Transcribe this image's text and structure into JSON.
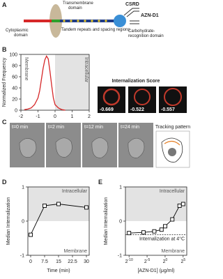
{
  "panel_labels": [
    "A",
    "B",
    "C",
    "D",
    "E"
  ],
  "diagram": {
    "transmembrane": [
      "Transmembrane",
      "domain"
    ],
    "csrd": "CSRD",
    "antibody": "AZN-D1",
    "cytoplasmic": [
      "Cytoplasmic",
      "domain"
    ],
    "tandem": "Tandem repeats and spacing regions",
    "crd": [
      "Carbohydrate-",
      "recognition domain"
    ]
  },
  "internalization": {
    "title": "Internalization Score",
    "scores": [
      -0.669,
      -0.522,
      -0.557
    ]
  },
  "time_lapse": {
    "frames": [
      "t=0 min",
      "t=2 min",
      "t=12 min",
      "t=24 min"
    ],
    "tracking_label": "Tracking pattern"
  },
  "chart_data": [
    {
      "type": "line",
      "y_label": "Normalized Frequency",
      "region_labels": [
        "Membrane",
        "Intracellular"
      ],
      "shade_axis": "x",
      "shaded_from": 0,
      "color": "#d62728",
      "x": [
        -1.8,
        -1.6,
        -1.4,
        -1.2,
        -1.0,
        -0.9,
        -0.8,
        -0.7,
        -0.6,
        -0.5,
        -0.4,
        -0.3,
        -0.2,
        -0.1,
        0,
        0.2,
        0.4,
        0.6
      ],
      "values": [
        1,
        2,
        4,
        10,
        22,
        35,
        55,
        75,
        90,
        97,
        92,
        70,
        45,
        22,
        10,
        4,
        1,
        0
      ],
      "xlim": [
        -2,
        2
      ],
      "xticks": [
        -2,
        -1,
        0,
        1,
        2
      ],
      "ylim": [
        0,
        100
      ],
      "yticks": [
        0,
        20,
        40,
        60,
        80,
        100
      ]
    },
    {
      "type": "line",
      "markers": "square",
      "x_label": "Time (min)",
      "y_label": "Median Internalization",
      "region_labels": [
        "Intracellular",
        "Membrane"
      ],
      "shade_axis": "y",
      "shaded_from": 0,
      "color": "#000000",
      "x": [
        0,
        7.5,
        15,
        30
      ],
      "values": [
        -0.4,
        0.45,
        0.5,
        0.4
      ],
      "xlim": [
        -1.5,
        31.5
      ],
      "xticks": [
        0,
        7.5,
        15,
        22.5,
        30
      ],
      "ylim": [
        -1,
        1
      ],
      "yticks": [
        -1,
        0,
        1
      ]
    },
    {
      "type": "line",
      "markers": "square",
      "log_base": 2,
      "x_label": "[AZN-D1] (μg/ml)",
      "y_label": "Median Internalization",
      "region_labels": [
        "Intracellular",
        "Membrane"
      ],
      "shade_axis": "y",
      "shaded_from": 0,
      "color": "#000000",
      "reference_line": {
        "value": -0.4,
        "label": "Internalization at 4°C"
      },
      "x": [
        0.0009765625,
        0.015625,
        0.125,
        0.5,
        1,
        4,
        16,
        32
      ],
      "values": [
        -0.35,
        -0.33,
        -0.3,
        -0.25,
        -0.15,
        0.05,
        0.45,
        0.5
      ],
      "xlim": [
        0.00048828125,
        64
      ],
      "xticks": [
        {
          "value": 0.0009765625,
          "label": "2",
          "exponent": "-10"
        },
        {
          "value": 0.03125,
          "label": "2",
          "exponent": "-5"
        },
        {
          "value": 1,
          "label": "2",
          "exponent": "0"
        },
        {
          "value": 32,
          "label": "2",
          "exponent": "5"
        }
      ],
      "ylim": [
        -1,
        1
      ],
      "yticks": [
        -1,
        0,
        1
      ]
    }
  ]
}
